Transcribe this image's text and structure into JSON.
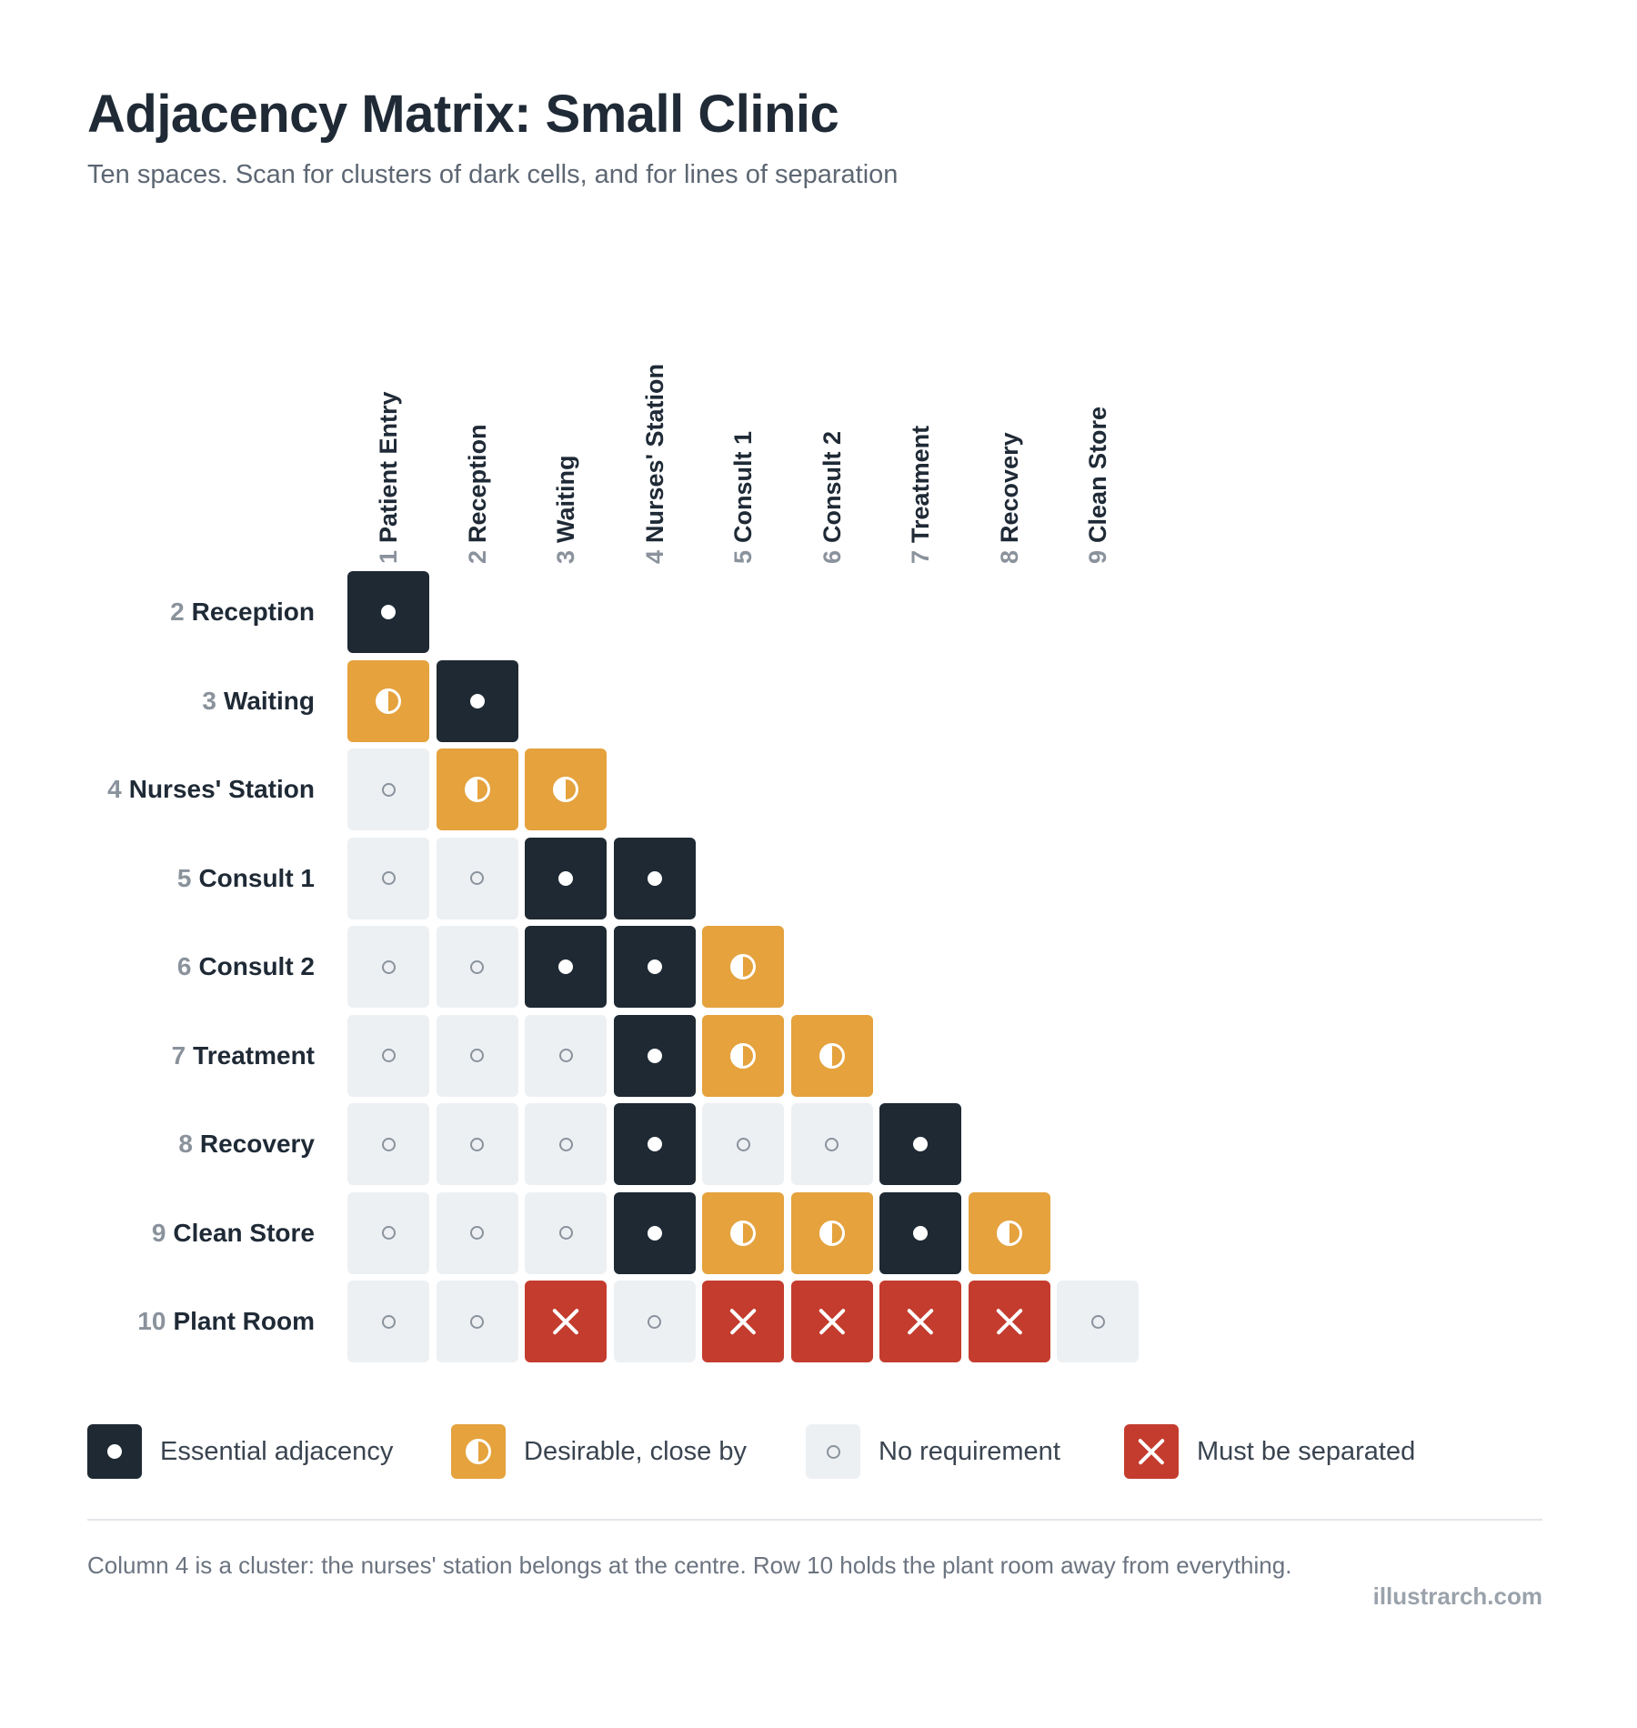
{
  "title": "Adjacency Matrix: Small Clinic",
  "subtitle": "Ten spaces. Scan for clusters of dark cells, and for lines of separation",
  "columns": [
    {
      "num": "1",
      "label": "Patient Entry"
    },
    {
      "num": "2",
      "label": "Reception"
    },
    {
      "num": "3",
      "label": "Waiting"
    },
    {
      "num": "4",
      "label": "Nurses' Station"
    },
    {
      "num": "5",
      "label": "Consult 1"
    },
    {
      "num": "6",
      "label": "Consult 2"
    },
    {
      "num": "7",
      "label": "Treatment"
    },
    {
      "num": "8",
      "label": "Recovery"
    },
    {
      "num": "9",
      "label": "Clean Store"
    }
  ],
  "rows": [
    {
      "num": "2",
      "label": "Reception",
      "cells": [
        "E"
      ]
    },
    {
      "num": "3",
      "label": "Waiting",
      "cells": [
        "D",
        "E"
      ]
    },
    {
      "num": "4",
      "label": "Nurses' Station",
      "cells": [
        "N",
        "D",
        "D"
      ]
    },
    {
      "num": "5",
      "label": "Consult 1",
      "cells": [
        "N",
        "N",
        "E",
        "E"
      ]
    },
    {
      "num": "6",
      "label": "Consult 2",
      "cells": [
        "N",
        "N",
        "E",
        "E",
        "D"
      ]
    },
    {
      "num": "7",
      "label": "Treatment",
      "cells": [
        "N",
        "N",
        "N",
        "E",
        "D",
        "D"
      ]
    },
    {
      "num": "8",
      "label": "Recovery",
      "cells": [
        "N",
        "N",
        "N",
        "E",
        "N",
        "N",
        "E"
      ]
    },
    {
      "num": "9",
      "label": "Clean Store",
      "cells": [
        "N",
        "N",
        "N",
        "E",
        "D",
        "D",
        "E",
        "D"
      ]
    },
    {
      "num": "10",
      "label": "Plant Room",
      "cells": [
        "N",
        "N",
        "X",
        "N",
        "X",
        "X",
        "X",
        "X",
        "N"
      ]
    }
  ],
  "legend": [
    {
      "code": "E",
      "label": "Essential adjacency"
    },
    {
      "code": "D",
      "label": "Desirable, close by"
    },
    {
      "code": "N",
      "label": "No requirement"
    },
    {
      "code": "X",
      "label": "Must be separated"
    }
  ],
  "colors": {
    "essential": "#1e2933",
    "desirable": "#e5a23d",
    "none": "#edf0f3",
    "separate": "#c43c2e"
  },
  "footnote": "Column 4 is a cluster: the nurses' station belongs at the centre. Row 10 holds the plant room away from everything.",
  "credit": "illustrarch.com"
}
